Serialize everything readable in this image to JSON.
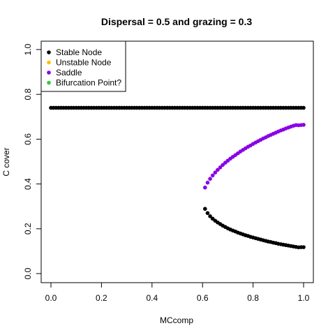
{
  "chart_data": {
    "type": "scatter",
    "title": "Dispersal =  0.5 and grazing = 0.3",
    "xlabel": "MCcomp",
    "ylabel": "C cover",
    "xlim": [
      0,
      1
    ],
    "ylim": [
      0,
      1
    ],
    "x_ticks": [
      "0.0",
      "0.2",
      "0.4",
      "0.6",
      "0.8",
      "1.0"
    ],
    "y_ticks": [
      "0.0",
      "0.2",
      "0.4",
      "0.6",
      "0.8",
      "1.0"
    ],
    "grid": false,
    "legend_position": "top-left",
    "legend": [
      {
        "label": "Stable Node",
        "color": "#000000"
      },
      {
        "label": "Unstable Node",
        "color": "#FFC000"
      },
      {
        "label": "Saddle",
        "color": "#8A00E6"
      },
      {
        "label": "Bifurcation Point?",
        "color": "#33CC33"
      }
    ],
    "series": [
      {
        "name": "Stable Node",
        "color": "#000000",
        "points": [
          [
            0.0,
            0.74
          ],
          [
            0.01,
            0.74
          ],
          [
            0.02,
            0.74
          ],
          [
            0.03,
            0.74
          ],
          [
            0.04,
            0.74
          ],
          [
            0.05,
            0.74
          ],
          [
            0.06,
            0.74
          ],
          [
            0.07,
            0.74
          ],
          [
            0.08,
            0.74
          ],
          [
            0.09,
            0.74
          ],
          [
            0.1,
            0.74
          ],
          [
            0.11,
            0.74
          ],
          [
            0.12,
            0.74
          ],
          [
            0.13,
            0.74
          ],
          [
            0.14,
            0.74
          ],
          [
            0.15,
            0.74
          ],
          [
            0.16,
            0.74
          ],
          [
            0.17,
            0.74
          ],
          [
            0.18,
            0.74
          ],
          [
            0.19,
            0.74
          ],
          [
            0.2,
            0.74
          ],
          [
            0.21,
            0.74
          ],
          [
            0.22,
            0.74
          ],
          [
            0.23,
            0.74
          ],
          [
            0.24,
            0.74
          ],
          [
            0.25,
            0.74
          ],
          [
            0.26,
            0.74
          ],
          [
            0.27,
            0.74
          ],
          [
            0.28,
            0.74
          ],
          [
            0.29,
            0.74
          ],
          [
            0.3,
            0.74
          ],
          [
            0.31,
            0.74
          ],
          [
            0.32,
            0.74
          ],
          [
            0.33,
            0.74
          ],
          [
            0.34,
            0.74
          ],
          [
            0.35,
            0.74
          ],
          [
            0.36,
            0.74
          ],
          [
            0.37,
            0.74
          ],
          [
            0.38,
            0.74
          ],
          [
            0.39,
            0.74
          ],
          [
            0.4,
            0.74
          ],
          [
            0.41,
            0.74
          ],
          [
            0.42,
            0.74
          ],
          [
            0.43,
            0.74
          ],
          [
            0.44,
            0.74
          ],
          [
            0.45,
            0.74
          ],
          [
            0.46,
            0.74
          ],
          [
            0.47,
            0.74
          ],
          [
            0.48,
            0.74
          ],
          [
            0.49,
            0.74
          ],
          [
            0.5,
            0.74
          ],
          [
            0.51,
            0.74
          ],
          [
            0.52,
            0.74
          ],
          [
            0.53,
            0.74
          ],
          [
            0.54,
            0.74
          ],
          [
            0.55,
            0.74
          ],
          [
            0.56,
            0.74
          ],
          [
            0.57,
            0.74
          ],
          [
            0.58,
            0.74
          ],
          [
            0.59,
            0.74
          ],
          [
            0.6,
            0.74
          ],
          [
            0.61,
            0.74
          ],
          [
            0.62,
            0.74
          ],
          [
            0.63,
            0.74
          ],
          [
            0.64,
            0.74
          ],
          [
            0.65,
            0.74
          ],
          [
            0.66,
            0.74
          ],
          [
            0.67,
            0.74
          ],
          [
            0.68,
            0.74
          ],
          [
            0.69,
            0.74
          ],
          [
            0.7,
            0.74
          ],
          [
            0.71,
            0.74
          ],
          [
            0.72,
            0.74
          ],
          [
            0.73,
            0.74
          ],
          [
            0.74,
            0.74
          ],
          [
            0.75,
            0.74
          ],
          [
            0.76,
            0.74
          ],
          [
            0.77,
            0.74
          ],
          [
            0.78,
            0.74
          ],
          [
            0.79,
            0.74
          ],
          [
            0.8,
            0.74
          ],
          [
            0.81,
            0.74
          ],
          [
            0.82,
            0.74
          ],
          [
            0.83,
            0.74
          ],
          [
            0.84,
            0.74
          ],
          [
            0.85,
            0.74
          ],
          [
            0.86,
            0.74
          ],
          [
            0.87,
            0.74
          ],
          [
            0.88,
            0.74
          ],
          [
            0.89,
            0.74
          ],
          [
            0.9,
            0.74
          ],
          [
            0.91,
            0.74
          ],
          [
            0.92,
            0.74
          ],
          [
            0.93,
            0.74
          ],
          [
            0.94,
            0.74
          ],
          [
            0.95,
            0.74
          ],
          [
            0.96,
            0.74
          ],
          [
            0.97,
            0.74
          ],
          [
            0.98,
            0.74
          ],
          [
            0.99,
            0.74
          ],
          [
            1.0,
            0.74
          ],
          [
            0.61,
            0.289
          ],
          [
            0.62,
            0.27
          ],
          [
            0.63,
            0.256
          ],
          [
            0.64,
            0.245
          ],
          [
            0.65,
            0.236
          ],
          [
            0.66,
            0.228
          ],
          [
            0.67,
            0.221
          ],
          [
            0.68,
            0.214
          ],
          [
            0.69,
            0.208
          ],
          [
            0.7,
            0.202
          ],
          [
            0.71,
            0.197
          ],
          [
            0.72,
            0.192
          ],
          [
            0.73,
            0.188
          ],
          [
            0.74,
            0.183
          ],
          [
            0.75,
            0.179
          ],
          [
            0.76,
            0.175
          ],
          [
            0.77,
            0.171
          ],
          [
            0.78,
            0.168
          ],
          [
            0.79,
            0.164
          ],
          [
            0.8,
            0.161
          ],
          [
            0.81,
            0.158
          ],
          [
            0.82,
            0.155
          ],
          [
            0.83,
            0.152
          ],
          [
            0.84,
            0.149
          ],
          [
            0.85,
            0.146
          ],
          [
            0.86,
            0.143
          ],
          [
            0.87,
            0.141
          ],
          [
            0.88,
            0.138
          ],
          [
            0.89,
            0.136
          ],
          [
            0.9,
            0.133
          ],
          [
            0.91,
            0.131
          ],
          [
            0.92,
            0.129
          ],
          [
            0.93,
            0.127
          ],
          [
            0.94,
            0.125
          ],
          [
            0.95,
            0.123
          ],
          [
            0.96,
            0.121
          ],
          [
            0.97,
            0.119
          ],
          [
            0.98,
            0.117
          ],
          [
            0.99,
            0.118
          ],
          [
            1.0,
            0.118
          ]
        ]
      },
      {
        "name": "Saddle",
        "color": "#8A00E6",
        "points": [
          [
            0.61,
            0.384
          ],
          [
            0.62,
            0.406
          ],
          [
            0.63,
            0.423
          ],
          [
            0.64,
            0.438
          ],
          [
            0.65,
            0.451
          ],
          [
            0.66,
            0.463
          ],
          [
            0.67,
            0.474
          ],
          [
            0.68,
            0.485
          ],
          [
            0.69,
            0.495
          ],
          [
            0.7,
            0.504
          ],
          [
            0.71,
            0.513
          ],
          [
            0.72,
            0.521
          ],
          [
            0.73,
            0.529
          ],
          [
            0.74,
            0.537
          ],
          [
            0.75,
            0.545
          ],
          [
            0.76,
            0.552
          ],
          [
            0.77,
            0.559
          ],
          [
            0.78,
            0.566
          ],
          [
            0.79,
            0.572
          ],
          [
            0.8,
            0.579
          ],
          [
            0.81,
            0.585
          ],
          [
            0.82,
            0.591
          ],
          [
            0.83,
            0.597
          ],
          [
            0.84,
            0.603
          ],
          [
            0.85,
            0.608
          ],
          [
            0.86,
            0.614
          ],
          [
            0.87,
            0.619
          ],
          [
            0.88,
            0.624
          ],
          [
            0.89,
            0.629
          ],
          [
            0.9,
            0.634
          ],
          [
            0.91,
            0.639
          ],
          [
            0.92,
            0.643
          ],
          [
            0.93,
            0.648
          ],
          [
            0.94,
            0.652
          ],
          [
            0.95,
            0.656
          ],
          [
            0.96,
            0.66
          ],
          [
            0.97,
            0.663
          ],
          [
            0.98,
            0.662
          ],
          [
            0.99,
            0.663
          ],
          [
            1.0,
            0.664
          ]
        ]
      }
    ]
  }
}
